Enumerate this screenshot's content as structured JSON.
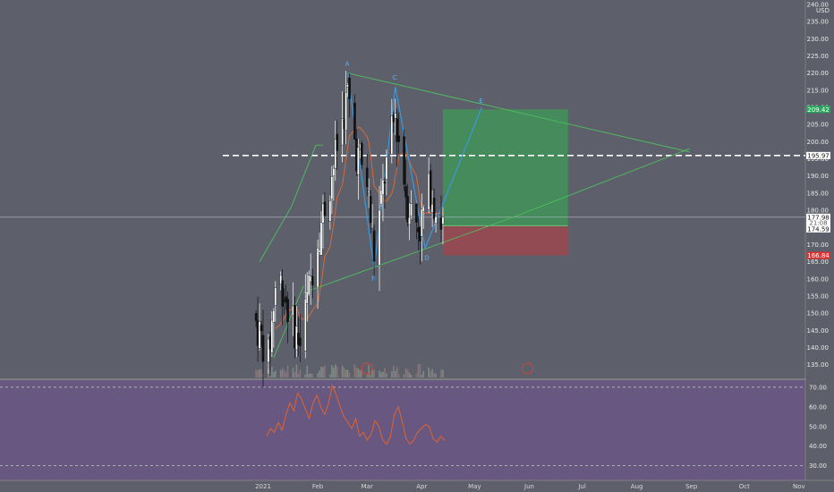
{
  "chart_data": {
    "type": "candlestick",
    "currency": "USD",
    "price_axis": {
      "ticks": [
        "240.00",
        "235.00",
        "230.00",
        "225.00",
        "220.00",
        "215.00",
        "210.00",
        "205.00",
        "200.00",
        "195.00",
        "190.00",
        "185.00",
        "180.00",
        "175.00",
        "170.00",
        "165.00",
        "160.00",
        "155.00",
        "150.00",
        "145.00",
        "140.00",
        "135.00"
      ],
      "ylim": [
        131,
        240
      ]
    },
    "time_axis": {
      "labels": [
        "2021",
        "Feb",
        "Mar",
        "Apr",
        "May",
        "Jun",
        "Jul",
        "Aug",
        "Sep",
        "Oct",
        "Nov"
      ]
    },
    "price_badges": [
      {
        "text": "209.42",
        "value": 209.42,
        "color": "#26a65b"
      },
      {
        "text": "195.97",
        "value": 195.97,
        "color": "#ffffff"
      },
      {
        "text": "177.98",
        "value": 177.98,
        "color": "#ffffff",
        "sub": "21:08"
      },
      {
        "text": "174.59",
        "value": 174.59,
        "color": "#ffffff"
      },
      {
        "text": "166.84",
        "value": 166.84,
        "color": "#e03030"
      }
    ],
    "pattern_points": [
      {
        "label": "A",
        "date": "2021-02-18",
        "price": 220
      },
      {
        "label": "B",
        "date": "2021-03-05",
        "price": 163
      },
      {
        "label": "C",
        "date": "2021-03-17",
        "price": 216
      },
      {
        "label": "D",
        "date": "2021-04-03",
        "price": 169
      },
      {
        "label": "E",
        "date": "2021-05-05",
        "price": 210
      }
    ],
    "position": {
      "entry": 175.5,
      "target": 209.42,
      "stop": 166.84,
      "start": "2021-04-13",
      "end": "2021-06-23"
    },
    "rsi": {
      "ticks": [
        "70.00",
        "60.00",
        "50.00",
        "40.00",
        "30.00"
      ],
      "ylim": [
        28,
        72
      ]
    }
  }
}
